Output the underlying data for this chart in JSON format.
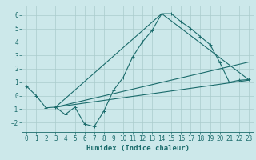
{
  "xlabel": "Humidex (Indice chaleur)",
  "bg_color": "#cce8ea",
  "grid_color": "#aacccc",
  "line_color": "#1a6b6b",
  "xlim": [
    -0.5,
    23.5
  ],
  "ylim": [
    -2.7,
    6.7
  ],
  "yticks": [
    -2,
    -1,
    0,
    1,
    2,
    3,
    4,
    5,
    6
  ],
  "xticks": [
    0,
    1,
    2,
    3,
    4,
    5,
    6,
    7,
    8,
    9,
    10,
    11,
    12,
    13,
    14,
    15,
    16,
    17,
    18,
    19,
    20,
    21,
    22,
    23
  ],
  "line1_x": [
    0,
    1,
    2,
    3,
    4,
    5,
    6,
    7,
    8,
    9,
    10,
    11,
    12,
    13,
    14,
    15,
    16,
    17,
    18,
    19,
    20,
    21,
    22,
    23
  ],
  "line1_y": [
    0.7,
    0.0,
    -0.9,
    -0.85,
    -1.4,
    -0.85,
    -2.1,
    -2.3,
    -1.15,
    0.4,
    1.35,
    2.9,
    4.0,
    4.85,
    6.1,
    6.1,
    5.5,
    5.0,
    4.4,
    3.8,
    2.5,
    1.0,
    1.15,
    1.2
  ],
  "line2_x": [
    3,
    23
  ],
  "line2_y": [
    -0.85,
    1.15
  ],
  "line3_x": [
    3,
    14,
    23
  ],
  "line3_y": [
    -0.85,
    6.1,
    1.2
  ],
  "line4_x": [
    3,
    23
  ],
  "line4_y": [
    -0.85,
    2.5
  ],
  "tick_fontsize": 5.5,
  "xlabel_fontsize": 6.5,
  "lw": 0.8,
  "marker_size": 3.0
}
